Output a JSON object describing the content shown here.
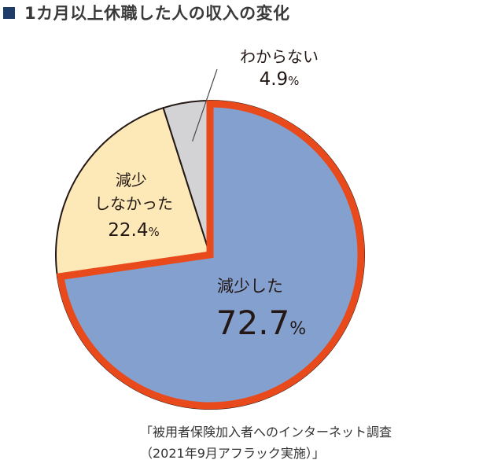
{
  "title": "1カ月以上休職した人の収入の変化",
  "source": {
    "line1": "「被用者保険加入者へのインターネット調査",
    "line2": "（2021年9月アフラック実施）」"
  },
  "chart_data": {
    "type": "pie",
    "title": "1カ月以上休職した人の収入の変化",
    "slices": [
      {
        "label": "減少した",
        "value": 72.7,
        "value_label": "72.7",
        "unit": "%",
        "color": "#84a0cf",
        "highlighted": true
      },
      {
        "label": "減少\nしなかった",
        "value": 22.4,
        "value_label": "22.4",
        "unit": "%",
        "color": "#fde9b7",
        "highlighted": false
      },
      {
        "label": "わからない",
        "value": 4.9,
        "value_label": "4.9",
        "unit": "%",
        "color": "#d3d3d5",
        "highlighted": false
      }
    ],
    "start": "12 o'clock",
    "direction": "clockwise",
    "highlight_color": "#e84a1b",
    "legend": "none"
  }
}
